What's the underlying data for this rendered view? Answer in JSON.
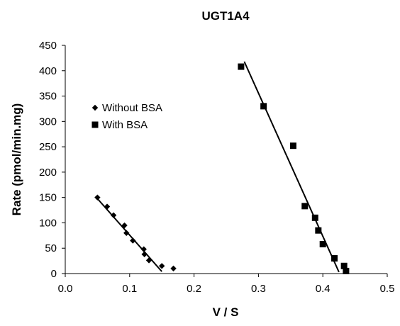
{
  "chart_data": {
    "type": "scatter",
    "title": "UGT1A4",
    "xlabel": "V / S",
    "ylabel": "Rate (pmol/min.mg)",
    "xlim": [
      0,
      0.5
    ],
    "ylim": [
      0,
      450
    ],
    "x_ticks": [
      "0.0",
      "0.1",
      "0.2",
      "0.3",
      "0.4",
      "0.5"
    ],
    "y_ticks": [
      "0",
      "50",
      "100",
      "150",
      "200",
      "250",
      "300",
      "350",
      "400",
      "450"
    ],
    "x_tick_values": [
      0,
      0.1,
      0.2,
      0.3,
      0.4,
      0.5
    ],
    "y_tick_values": [
      0,
      50,
      100,
      150,
      200,
      250,
      300,
      350,
      400,
      450
    ],
    "grid": false,
    "legend_position": "left",
    "series": [
      {
        "name": "Without BSA",
        "marker": "diamond",
        "color": "#000000",
        "points": [
          [
            0.05,
            150
          ],
          [
            0.065,
            132
          ],
          [
            0.075,
            115
          ],
          [
            0.092,
            95
          ],
          [
            0.095,
            80
          ],
          [
            0.105,
            65
          ],
          [
            0.122,
            48
          ],
          [
            0.123,
            38
          ],
          [
            0.13,
            26
          ],
          [
            0.15,
            15
          ],
          [
            0.168,
            10
          ]
        ],
        "trendline": [
          [
            0.047,
            152
          ],
          [
            0.15,
            4
          ]
        ]
      },
      {
        "name": "With BSA",
        "marker": "square",
        "color": "#000000",
        "points": [
          [
            0.273,
            408
          ],
          [
            0.308,
            330
          ],
          [
            0.354,
            252
          ],
          [
            0.372,
            133
          ],
          [
            0.388,
            110
          ],
          [
            0.393,
            85
          ],
          [
            0.4,
            58
          ],
          [
            0.418,
            30
          ],
          [
            0.433,
            15
          ],
          [
            0.436,
            5
          ]
        ],
        "trendline": [
          [
            0.278,
            418
          ],
          [
            0.425,
            3
          ]
        ]
      }
    ]
  }
}
